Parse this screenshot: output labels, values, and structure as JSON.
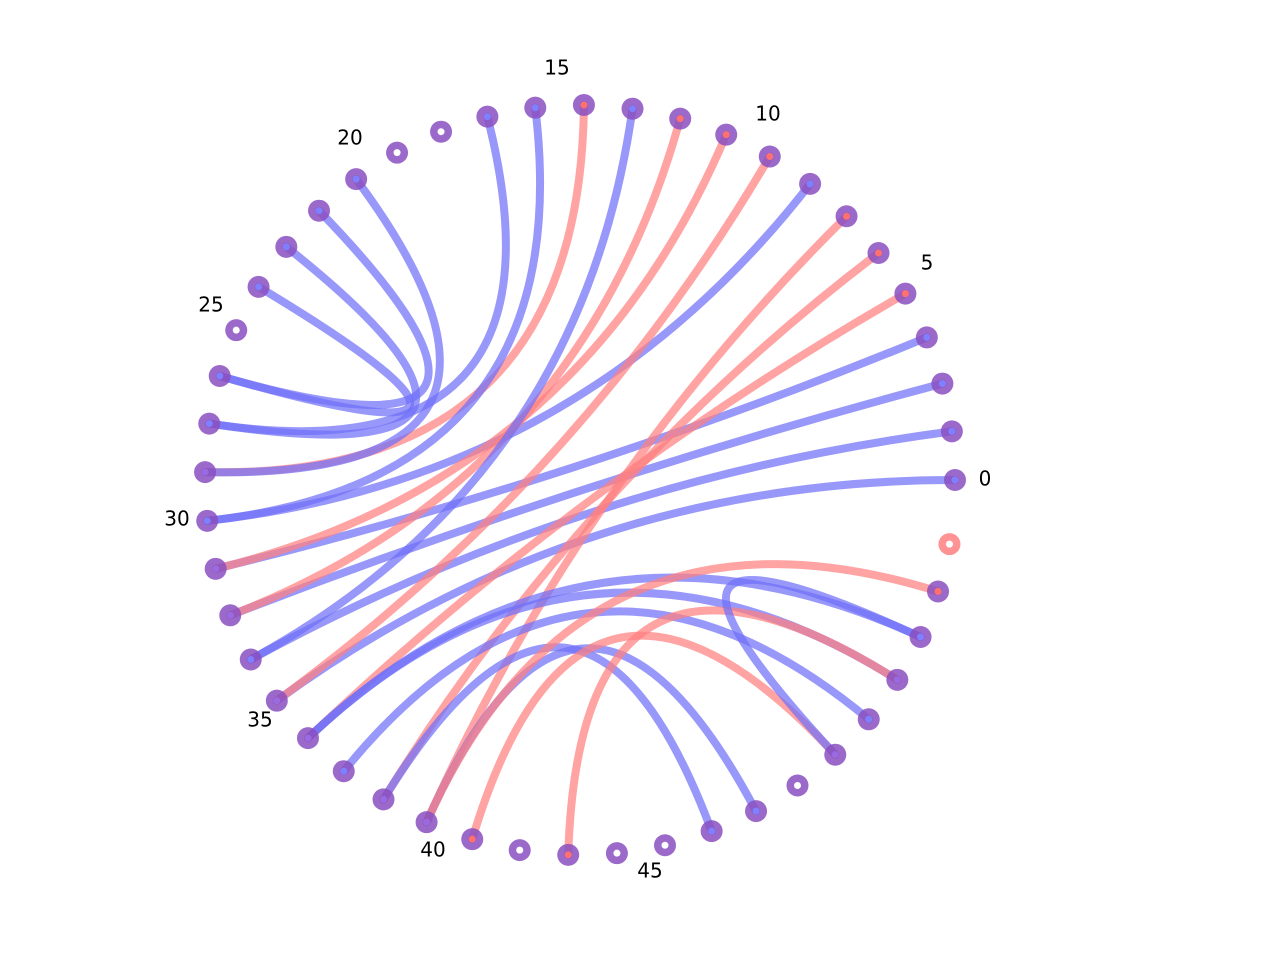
{
  "diagram": {
    "type": "arc-diagram",
    "node_count": 48,
    "tick_labels": [
      "0",
      "5",
      "10",
      "15",
      "20",
      "25",
      "30",
      "35",
      "40",
      "45"
    ],
    "colors": {
      "blue": "#7070f8",
      "red": "#ff8080",
      "purple_node": "#8a4fbf"
    },
    "nodes_blue_only": [],
    "nodes_red_only": [
      47
    ],
    "nodes_none": [
      15,
      16,
      21,
      35,
      37,
      38,
      41
    ],
    "links": [
      {
        "a": 0,
        "b": 29,
        "color": "blue"
      },
      {
        "a": 1,
        "b": 28,
        "color": "blue"
      },
      {
        "a": 2,
        "b": 27,
        "color": "blue"
      },
      {
        "a": 3,
        "b": 26,
        "color": "blue"
      },
      {
        "a": 4,
        "b": 30,
        "color": "red"
      },
      {
        "a": 5,
        "b": 32,
        "color": "red"
      },
      {
        "a": 6,
        "b": 33,
        "color": "red"
      },
      {
        "a": 7,
        "b": 25,
        "color": "blue"
      },
      {
        "a": 8,
        "b": 29,
        "color": "red"
      },
      {
        "a": 9,
        "b": 26,
        "color": "red"
      },
      {
        "a": 10,
        "b": 27,
        "color": "red"
      },
      {
        "a": 11,
        "b": 28,
        "color": "blue"
      },
      {
        "a": 12,
        "b": 24,
        "color": "red"
      },
      {
        "a": 13,
        "b": 25,
        "color": "blue"
      },
      {
        "a": 14,
        "b": 23,
        "color": "blue"
      },
      {
        "a": 17,
        "b": 24,
        "color": "blue"
      },
      {
        "a": 18,
        "b": 22,
        "color": "blue"
      },
      {
        "a": 19,
        "b": 23,
        "color": "blue"
      },
      {
        "a": 20,
        "b": 22,
        "color": "blue"
      },
      {
        "a": 30,
        "b": 45,
        "color": "blue"
      },
      {
        "a": 31,
        "b": 43,
        "color": "blue"
      },
      {
        "a": 32,
        "b": 39,
        "color": "blue"
      },
      {
        "a": 33,
        "b": 40,
        "color": "blue"
      },
      {
        "a": 30,
        "b": 44,
        "color": "blue"
      },
      {
        "a": 33,
        "b": 46,
        "color": "red"
      },
      {
        "a": 34,
        "b": 42,
        "color": "red"
      },
      {
        "a": 36,
        "b": 44,
        "color": "red"
      },
      {
        "a": 42,
        "b": 45,
        "color": "blue"
      }
    ]
  }
}
